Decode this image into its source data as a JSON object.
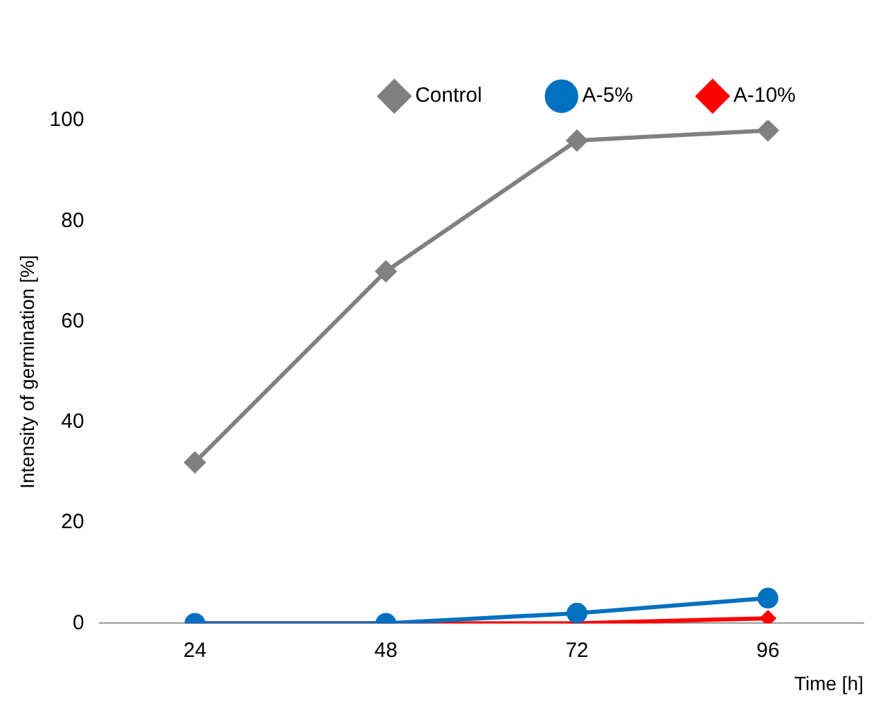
{
  "chart_data": {
    "type": "line",
    "xlabel": "Time [h]",
    "ylabel": "Intensity of germination [%]",
    "categories": [
      "24",
      "48",
      "72",
      "96"
    ],
    "ylim": [
      0,
      100
    ],
    "yticks": [
      0,
      20,
      40,
      60,
      80,
      100
    ],
    "grid": false,
    "legend": "top right",
    "series": [
      {
        "name": "Control",
        "color": "#808080",
        "marker": "diamond",
        "values": [
          32,
          70,
          96,
          98
        ]
      },
      {
        "name": "A-5%",
        "color": "#0070c0",
        "marker": "circle",
        "values": [
          0,
          0,
          2,
          5
        ]
      },
      {
        "name": "A-10%",
        "color": "#ff0000",
        "marker": "diamond",
        "values": [
          0,
          0,
          0,
          1
        ]
      }
    ]
  }
}
